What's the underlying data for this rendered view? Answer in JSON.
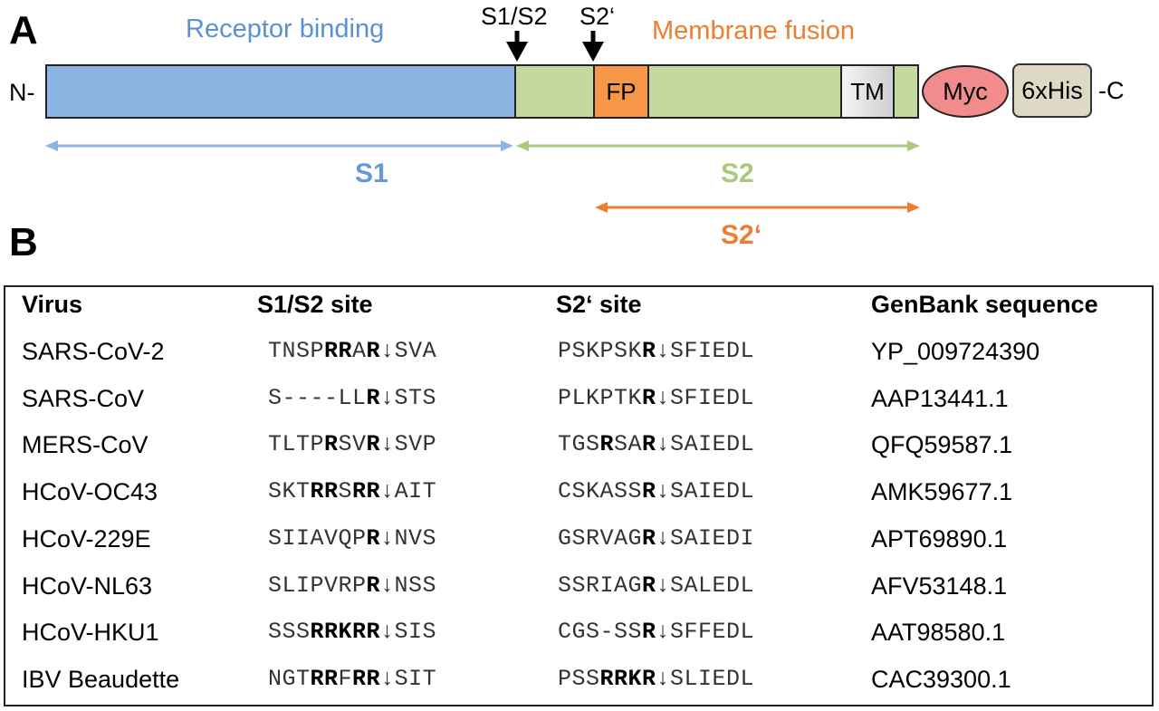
{
  "panel_a": {
    "letter": "A",
    "receptor_label": "Receptor binding",
    "membrane_label": "Membrane fusion",
    "site_s1s2": "S1/S2",
    "site_s2p": "S2‘",
    "n_term": "N-",
    "c_term": "-C",
    "fp_label": "FP",
    "tm_label": "TM",
    "myc_label": "Myc",
    "his_label": "6xHis",
    "region_s1": "S1",
    "region_s2": "S2",
    "region_s2p": "S2‘",
    "colors": {
      "s1": "#8eb4e3",
      "s2": "#c4d9a0",
      "fp": "#f79646",
      "myc": "#f28b8b",
      "his": "#ddd9c4",
      "s1_arrow": "#8eb4e3",
      "s2_arrow": "#a9c97e",
      "s2p_arrow": "#ed7d31"
    }
  },
  "panel_b": {
    "letter": "B",
    "headers": {
      "virus": "Virus",
      "s1s2": "S1/S2 site",
      "s2p": "S2‘ site",
      "genbank": "GenBank sequence"
    },
    "rows": [
      {
        "virus": "SARS-CoV-2",
        "s1s2": [
          "TNSP",
          "RR",
          "A",
          "R",
          "↓SVA"
        ],
        "s2p": [
          "PSKPSK",
          "R",
          "↓SFIEDL"
        ],
        "genbank": "YP_009724390"
      },
      {
        "virus": "SARS-CoV",
        "s1s2": [
          "S----LL",
          "R",
          "↓STS"
        ],
        "s2p": [
          "PLKPTK",
          "R",
          "↓SFIEDL"
        ],
        "genbank": "AAP13441.1"
      },
      {
        "virus": "MERS-CoV",
        "s1s2": [
          "TLTP",
          "R",
          "SV",
          "R",
          "↓SVP"
        ],
        "s2p": [
          "TGS",
          "R",
          "SA",
          "R",
          "↓SAIEDL"
        ],
        "genbank": "QFQ59587.1"
      },
      {
        "virus": "HCoV-OC43",
        "s1s2": [
          "SKT",
          "RR",
          "S",
          "RR",
          "↓AIT"
        ],
        "s2p": [
          "CSKASS",
          "R",
          "↓SAIEDL"
        ],
        "genbank": "AMK59677.1"
      },
      {
        "virus": "HCoV-229E",
        "s1s2": [
          "SIIAVQP",
          "R",
          "↓NVS"
        ],
        "s2p": [
          "GSRVAG",
          "R",
          "↓SAIEDI"
        ],
        "genbank": "APT69890.1"
      },
      {
        "virus": "HCoV-NL63",
        "s1s2": [
          "SLIPVRP",
          "R",
          "↓NSS"
        ],
        "s2p": [
          "SSRIAG",
          "R",
          "↓SALEDL"
        ],
        "genbank": "AFV53148.1"
      },
      {
        "virus": "HCoV-HKU1",
        "s1s2": [
          "SSS",
          "RRKRR",
          "↓SIS"
        ],
        "s2p": [
          "CGS-SS",
          "R",
          "↓SFFEDL"
        ],
        "genbank": "AAT98580.1"
      },
      {
        "virus": "IBV Beaudette",
        "s1s2": [
          "NGT",
          "RR",
          "F",
          "RR",
          "↓SIT"
        ],
        "s2p": [
          "PSS",
          "RRKR",
          "↓SLIEDL"
        ],
        "genbank": "CAC39300.1"
      }
    ]
  }
}
